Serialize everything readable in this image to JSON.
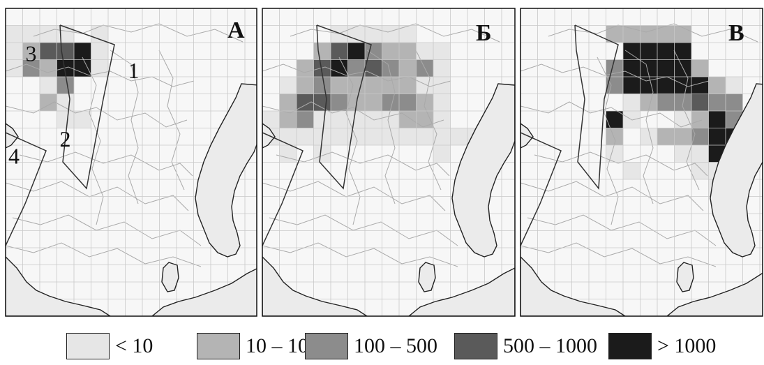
{
  "panels": [
    {
      "id": "A",
      "letter": "А",
      "region_labels": [
        {
          "text": "3",
          "col": 1,
          "row": 3
        },
        {
          "text": "1",
          "col": 7,
          "row": 4
        },
        {
          "text": "2",
          "col": 3,
          "row": 8
        },
        {
          "text": "4",
          "col": 0,
          "row": 9
        }
      ],
      "cells": [
        [
          5,
          1,
          1
        ],
        [
          5,
          2,
          1
        ],
        [
          3,
          2,
          3
        ],
        [
          3,
          3,
          4
        ],
        [
          3,
          4,
          5
        ],
        [
          3,
          5,
          3
        ],
        [
          3,
          2,
          5
        ],
        [
          3,
          3,
          5
        ],
        [
          3,
          4,
          3
        ],
        [
          3,
          5,
          2
        ],
        [
          2,
          2,
          5
        ],
        [
          2,
          3,
          5
        ],
        [
          2,
          4,
          3
        ],
        [
          2,
          5,
          2
        ],
        [
          3,
          2,
          4
        ],
        [
          3,
          3,
          5
        ],
        [
          4,
          2,
          5
        ],
        [
          4,
          3,
          5
        ],
        [
          1,
          2,
          3
        ],
        [
          2,
          2,
          4
        ],
        [
          2,
          3,
          3
        ],
        [
          1,
          1,
          1
        ],
        [
          2,
          1,
          1
        ],
        [
          3,
          1,
          1
        ],
        [
          1,
          2,
          2
        ],
        [
          1,
          3,
          3
        ],
        [
          2,
          3,
          2
        ],
        [
          2,
          4,
          1
        ],
        [
          0,
          1,
          1
        ],
        [
          0,
          2,
          1
        ],
        [
          0,
          3,
          1
        ],
        [
          3,
          5,
          1
        ],
        [
          3,
          6,
          1
        ],
        [
          4,
          6,
          1
        ],
        [
          5,
          3,
          1
        ]
      ]
    },
    {
      "id": "B",
      "letter": "Б",
      "cells": [
        [
          4,
          1,
          1
        ],
        [
          5,
          1,
          1
        ],
        [
          6,
          1,
          1
        ],
        [
          7,
          1,
          1
        ],
        [
          8,
          1,
          1
        ],
        [
          3,
          2,
          2
        ],
        [
          4,
          2,
          4
        ],
        [
          5,
          2,
          5
        ],
        [
          6,
          2,
          3
        ],
        [
          7,
          2,
          2
        ],
        [
          8,
          2,
          2
        ],
        [
          9,
          2,
          1
        ],
        [
          10,
          2,
          1
        ],
        [
          2,
          3,
          2
        ],
        [
          3,
          3,
          4
        ],
        [
          4,
          3,
          5
        ],
        [
          5,
          3,
          3
        ],
        [
          6,
          3,
          4
        ],
        [
          7,
          3,
          3
        ],
        [
          8,
          3,
          2
        ],
        [
          9,
          3,
          3
        ],
        [
          10,
          3,
          1
        ],
        [
          1,
          4,
          1
        ],
        [
          2,
          4,
          2
        ],
        [
          3,
          4,
          3
        ],
        [
          4,
          4,
          2
        ],
        [
          5,
          4,
          2
        ],
        [
          6,
          4,
          2
        ],
        [
          7,
          4,
          2
        ],
        [
          8,
          4,
          2
        ],
        [
          9,
          4,
          1
        ],
        [
          10,
          4,
          1
        ],
        [
          1,
          5,
          2
        ],
        [
          2,
          5,
          4
        ],
        [
          3,
          5,
          4
        ],
        [
          4,
          5,
          3
        ],
        [
          5,
          5,
          2
        ],
        [
          6,
          5,
          2
        ],
        [
          7,
          5,
          3
        ],
        [
          8,
          5,
          3
        ],
        [
          9,
          5,
          2
        ],
        [
          10,
          5,
          1
        ],
        [
          0,
          6,
          1
        ],
        [
          1,
          6,
          2
        ],
        [
          2,
          6,
          3
        ],
        [
          3,
          6,
          1
        ],
        [
          4,
          6,
          1
        ],
        [
          5,
          6,
          1
        ],
        [
          6,
          6,
          1
        ],
        [
          7,
          6,
          1
        ],
        [
          8,
          6,
          2
        ],
        [
          9,
          6,
          2
        ],
        [
          10,
          6,
          1
        ],
        [
          0,
          7,
          1
        ],
        [
          1,
          7,
          1
        ],
        [
          2,
          7,
          1
        ],
        [
          3,
          7,
          1
        ],
        [
          4,
          7,
          1
        ],
        [
          5,
          7,
          1
        ],
        [
          6,
          7,
          1
        ],
        [
          7,
          7,
          1
        ],
        [
          8,
          7,
          1
        ],
        [
          9,
          7,
          1
        ],
        [
          10,
          7,
          1
        ],
        [
          11,
          7,
          1
        ],
        [
          12,
          7,
          1
        ],
        [
          1,
          8,
          1
        ],
        [
          3,
          8,
          1
        ],
        [
          10,
          8,
          1
        ]
      ]
    },
    {
      "id": "C",
      "letter": "В",
      "cells": [
        [
          5,
          1,
          2
        ],
        [
          6,
          1,
          2
        ],
        [
          7,
          1,
          2
        ],
        [
          8,
          1,
          2
        ],
        [
          9,
          1,
          2
        ],
        [
          6,
          2,
          5
        ],
        [
          7,
          2,
          5
        ],
        [
          8,
          2,
          5
        ],
        [
          9,
          2,
          5
        ],
        [
          5,
          3,
          3
        ],
        [
          6,
          3,
          5
        ],
        [
          7,
          3,
          5
        ],
        [
          8,
          3,
          5
        ],
        [
          9,
          3,
          5
        ],
        [
          10,
          3,
          2
        ],
        [
          5,
          4,
          3
        ],
        [
          6,
          4,
          5
        ],
        [
          7,
          4,
          5
        ],
        [
          8,
          4,
          5
        ],
        [
          9,
          4,
          5
        ],
        [
          10,
          4,
          5
        ],
        [
          11,
          4,
          2
        ],
        [
          12,
          4,
          1
        ],
        [
          6,
          5,
          1
        ],
        [
          7,
          5,
          2
        ],
        [
          8,
          5,
          3
        ],
        [
          9,
          5,
          3
        ],
        [
          10,
          5,
          4
        ],
        [
          11,
          5,
          3
        ],
        [
          12,
          5,
          3
        ],
        [
          5,
          6,
          5
        ],
        [
          6,
          6,
          1
        ],
        [
          9,
          6,
          1
        ],
        [
          10,
          6,
          2
        ],
        [
          11,
          6,
          5
        ],
        [
          12,
          6,
          3
        ],
        [
          13,
          6,
          2
        ],
        [
          5,
          7,
          2
        ],
        [
          7,
          7,
          1
        ],
        [
          8,
          7,
          2
        ],
        [
          9,
          7,
          2
        ],
        [
          10,
          7,
          3
        ],
        [
          11,
          7,
          5
        ],
        [
          12,
          7,
          5
        ],
        [
          5,
          8,
          1
        ],
        [
          9,
          8,
          1
        ],
        [
          10,
          8,
          1
        ],
        [
          11,
          8,
          5
        ],
        [
          12,
          8,
          5
        ],
        [
          13,
          8,
          1
        ],
        [
          6,
          9,
          1
        ],
        [
          10,
          9,
          1
        ],
        [
          11,
          9,
          1
        ],
        [
          12,
          9,
          2
        ],
        [
          11,
          10,
          1
        ],
        [
          12,
          10,
          1
        ]
      ]
    }
  ],
  "legend": [
    {
      "label": "< 10",
      "color": "#e6e6e6"
    },
    {
      "label": "10 – 100",
      "color": "#b4b4b4"
    },
    {
      "label": "100 – 500",
      "color": "#8c8c8c"
    },
    {
      "label": "500 – 1000",
      "color": "#5a5a5a"
    },
    {
      "label": "> 1000",
      "color": "#1b1b1b"
    }
  ],
  "colors": {
    "sea": "#f7f7f7",
    "land": "#ebebeb",
    "grid": "#c8c8c8",
    "contour": "#a9a9a9",
    "coast": "#222222",
    "border": "#333333"
  }
}
